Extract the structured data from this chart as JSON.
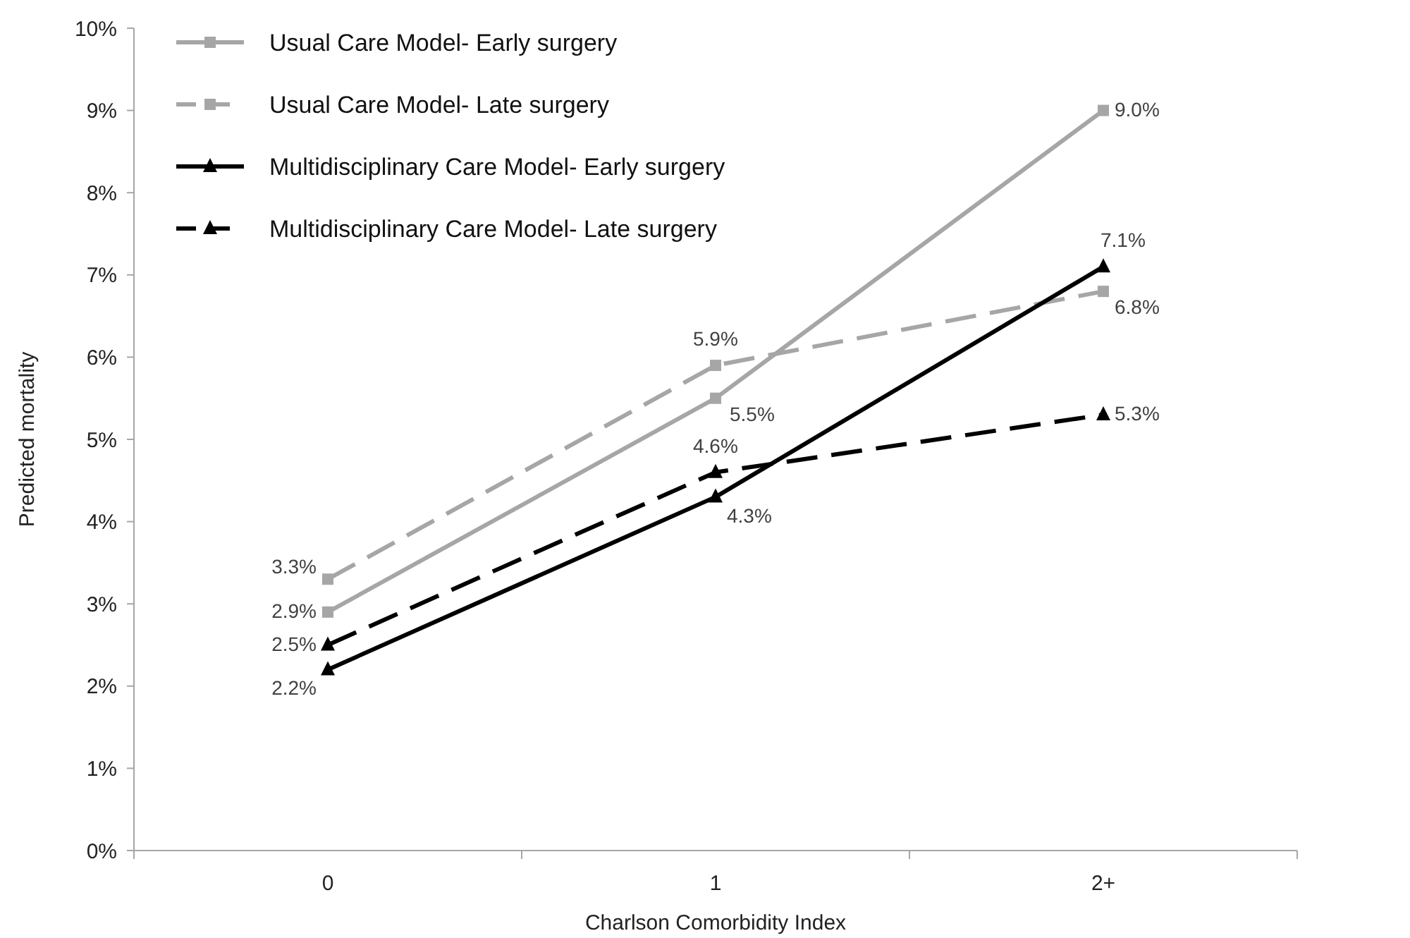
{
  "chart_data": {
    "type": "line",
    "xlabel": "Charlson Comorbidity Index",
    "ylabel": "Predicted mortality",
    "categories": [
      "0",
      "1",
      "2+"
    ],
    "ylim": [
      0,
      10
    ],
    "yticks": [
      {
        "value": 0,
        "label": "0%"
      },
      {
        "value": 1,
        "label": "1%"
      },
      {
        "value": 2,
        "label": "2%"
      },
      {
        "value": 3,
        "label": "3%"
      },
      {
        "value": 4,
        "label": "4%"
      },
      {
        "value": 5,
        "label": "5%"
      },
      {
        "value": 6,
        "label": "6%"
      },
      {
        "value": 7,
        "label": "7%"
      },
      {
        "value": 8,
        "label": "8%"
      },
      {
        "value": 9,
        "label": "9%"
      },
      {
        "value": 10,
        "label": "10%"
      }
    ],
    "grid": false,
    "legend": "top left",
    "series": [
      {
        "name": "Usual Care Model- Early surgery",
        "color": "#a6a6a6",
        "values": [
          2.9,
          5.5,
          9.0
        ],
        "value_labels": [
          "2.9%",
          "5.5%",
          "9.0%"
        ],
        "marker": "square",
        "line_style": "solid"
      },
      {
        "name": "Usual Care Model- Late surgery",
        "color": "#a6a6a6",
        "values": [
          3.3,
          5.9,
          6.8
        ],
        "value_labels": [
          "3.3%",
          "5.9%",
          "6.8%"
        ],
        "marker": "square",
        "line_style": "dashed"
      },
      {
        "name": "Multidisciplinary Care Model- Early surgery",
        "color": "#000000",
        "values": [
          2.2,
          4.3,
          7.1
        ],
        "value_labels": [
          "2.2%",
          "4.3%",
          "7.1%"
        ],
        "marker": "triangle",
        "line_style": "solid"
      },
      {
        "name": "Multidisciplinary Care Model- Late surgery",
        "color": "#000000",
        "values": [
          2.5,
          4.6,
          5.3
        ],
        "value_labels": [
          "2.5%",
          "4.6%",
          "5.3%"
        ],
        "marker": "triangle",
        "line_style": "dashed"
      }
    ]
  }
}
